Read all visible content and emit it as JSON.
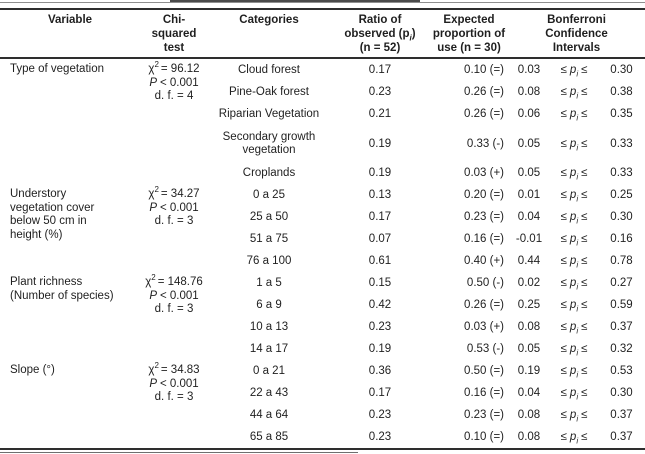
{
  "table": {
    "header": {
      "variable": "Variable",
      "chi_lines": [
        "Chi-",
        "squared",
        "test"
      ],
      "categories": "Categories",
      "ratio": {
        "l1": "Ratio of",
        "l2a": "observed (p",
        "l2b": "i",
        "l2c": ")",
        "l3": "(n = 52)"
      },
      "expected_lines": [
        "Expected",
        "proportion of",
        "use (n = 30)"
      ],
      "bonferroni_lines": [
        "Bonferroni",
        "Confidence",
        "Intervals"
      ]
    },
    "symbols": {
      "leq": "≤",
      "p": "p",
      "sub_i": "i"
    },
    "groups": [
      {
        "variable_lines": [
          "Type of vegetation"
        ],
        "chi": {
          "sym": "χ",
          "sup": "2",
          "stat": "= 96.12",
          "p_sym": "P",
          "p_val": "< 0.001",
          "df": "d. f. = 4"
        },
        "rows": [
          {
            "category": "Cloud forest",
            "ratio": "0.17",
            "expected": "0.10 (=)",
            "ci_low": "0.03",
            "ci_high": "0.30"
          },
          {
            "category": "Pine-Oak forest",
            "ratio": "0.23",
            "expected": "0.26 (=)",
            "ci_low": "0.08",
            "ci_high": "0.38"
          },
          {
            "category": "Riparian Vegetation",
            "ratio": "0.21",
            "expected": "0.26 (=)",
            "ci_low": "0.06",
            "ci_high": "0.35"
          },
          {
            "category": "Secondary growth vegetation",
            "ratio": "0.19",
            "expected": "0.33 (-)",
            "ci_low": "0.05",
            "ci_high": "0.33"
          },
          {
            "category": "Croplands",
            "ratio": "0.19",
            "expected": "0.03 (+)",
            "ci_low": "0.05",
            "ci_high": "0.33"
          }
        ]
      },
      {
        "variable_lines": [
          "Understory",
          "vegetation cover",
          "below 50 cm in",
          "height (%)"
        ],
        "chi": {
          "sym": "χ",
          "sup": "2",
          "stat": "= 34.27",
          "p_sym": "P",
          "p_val": "< 0.001",
          "df": "d. f. = 3"
        },
        "rows": [
          {
            "category": "0 a 25",
            "ratio": "0.13",
            "expected": "0.20 (=)",
            "ci_low": "0.01",
            "ci_high": "0.25"
          },
          {
            "category": "25 a 50",
            "ratio": "0.17",
            "expected": "0.23 (=)",
            "ci_low": "0.04",
            "ci_high": "0.30"
          },
          {
            "category": "51 a 75",
            "ratio": "0.07",
            "expected": "0.16 (=)",
            "ci_low": "-0.01",
            "ci_high": "0.16"
          },
          {
            "category": "76 a 100",
            "ratio": "0.61",
            "expected": "0.40 (+)",
            "ci_low": "0.44",
            "ci_high": "0.78"
          }
        ]
      },
      {
        "variable_lines": [
          "Plant richness",
          "(Number of species)"
        ],
        "chi": {
          "sym": "χ",
          "sup": "2",
          "stat": "= 148.76",
          "p_sym": "P",
          "p_val": "< 0.001",
          "df": "d. f. = 3"
        },
        "rows": [
          {
            "category": "1 a 5",
            "ratio": "0.15",
            "expected": "0.50 (-)",
            "ci_low": "0.02",
            "ci_high": "0.27"
          },
          {
            "category": "6 a 9",
            "ratio": "0.42",
            "expected": "0.26 (=)",
            "ci_low": "0.25",
            "ci_high": "0.59"
          },
          {
            "category": "10 a 13",
            "ratio": "0.23",
            "expected": "0.03 (+)",
            "ci_low": "0.08",
            "ci_high": "0.37"
          },
          {
            "category": "14 a 17",
            "ratio": "0.19",
            "expected": "0.53 (-)",
            "ci_low": "0.05",
            "ci_high": "0.32"
          }
        ]
      },
      {
        "variable_lines": [
          "Slope (°)"
        ],
        "chi": {
          "sym": "χ",
          "sup": "2",
          "stat": "= 34.83",
          "p_sym": "P",
          "p_val": "< 0.001",
          "df": "d. f. = 3"
        },
        "rows": [
          {
            "category": "0 a 21",
            "ratio": "0.36",
            "expected": "0.50 (=)",
            "ci_low": "0.19",
            "ci_high": "0.53"
          },
          {
            "category": "22 a 43",
            "ratio": "0.17",
            "expected": "0.16 (=)",
            "ci_low": "0.04",
            "ci_high": "0.30"
          },
          {
            "category": "44 a 64",
            "ratio": "0.23",
            "expected": "0.23 (=)",
            "ci_low": "0.08",
            "ci_high": "0.37"
          },
          {
            "category": "65 a 85",
            "ratio": "0.23",
            "expected": "0.10 (=)",
            "ci_low": "0.08",
            "ci_high": "0.37"
          }
        ]
      }
    ]
  }
}
